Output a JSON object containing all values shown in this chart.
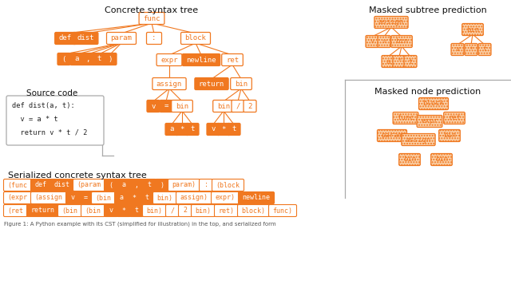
{
  "title": "Concrete syntax tree",
  "title2": "Masked subtree prediction",
  "title3": "Masked node prediction",
  "title4": "Serialized concrete syntax tree",
  "title5": "Source code",
  "orange_fill": "#F07820",
  "orange_border": "#F07820",
  "white_fill": "#FFFFFF",
  "white_text": "#FFFFFF",
  "orange_text": "#F07820",
  "bg_color": "#FFFFFF",
  "hatched_fill": "#FAD0A8",
  "text_color": "#111111",
  "divider_color": "#AAAAAA"
}
